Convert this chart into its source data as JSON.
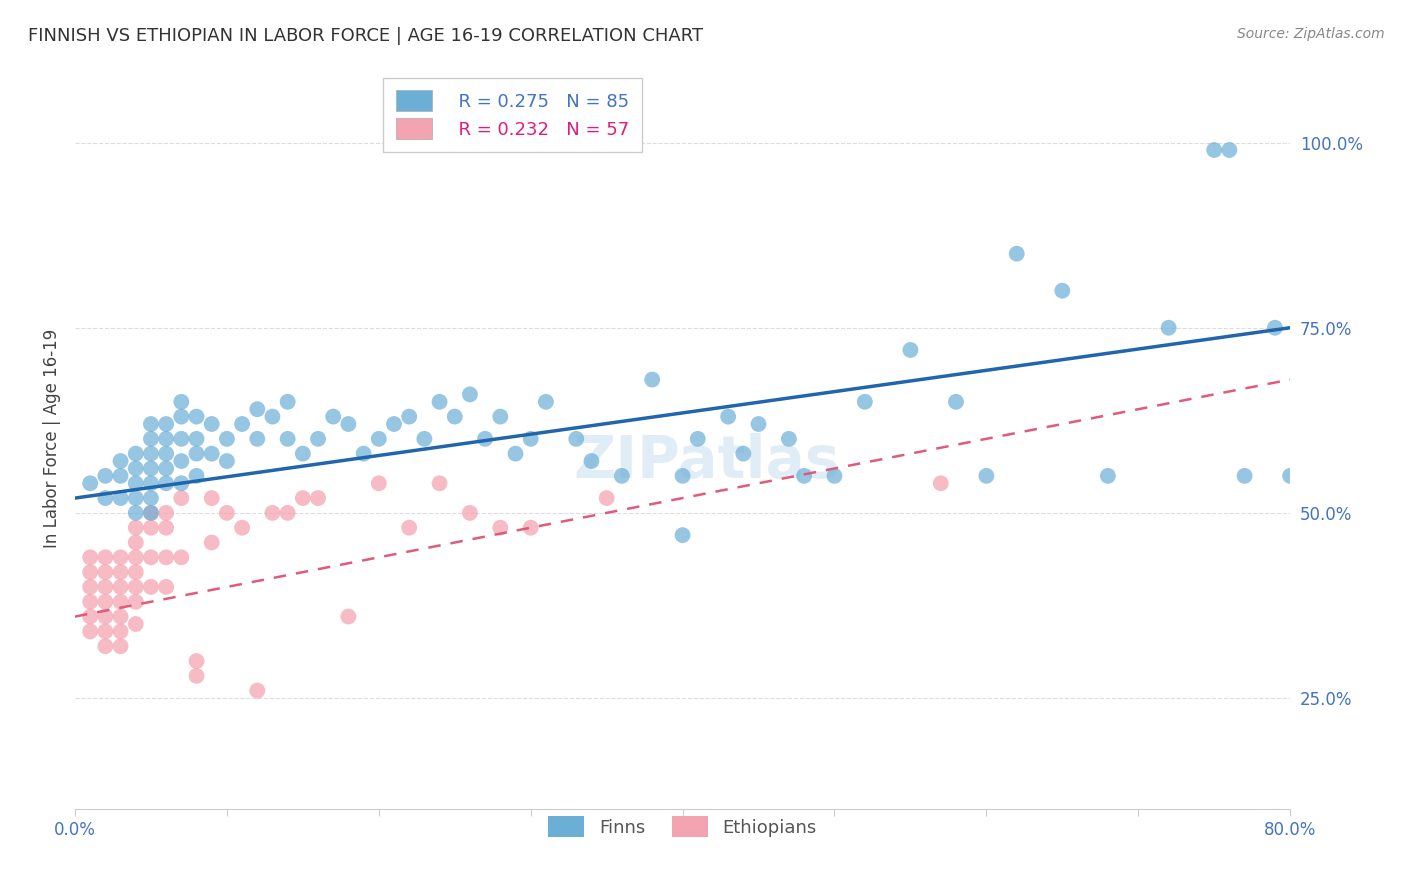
{
  "title": "FINNISH VS ETHIOPIAN IN LABOR FORCE | AGE 16-19 CORRELATION CHART",
  "source": "Source: ZipAtlas.com",
  "ylabel": "In Labor Force | Age 16-19",
  "xlim": [
    0.0,
    0.8
  ],
  "ylim": [
    0.1,
    1.1
  ],
  "ytick_positions": [
    0.25,
    0.5,
    0.75,
    1.0
  ],
  "ytick_labels": [
    "25.0%",
    "50.0%",
    "75.0%",
    "100.0%"
  ],
  "finns_R": 0.275,
  "finns_N": 85,
  "ethiopians_R": 0.232,
  "ethiopians_N": 57,
  "finns_color": "#6baed6",
  "ethiopians_color": "#f4a4b0",
  "finns_line_color": "#2166ac",
  "ethiopians_line_color": "#e05a7a",
  "watermark": "ZIPatlas",
  "background_color": "#ffffff",
  "grid_color": "#dddddd",
  "finn_line_x0": 0.0,
  "finn_line_y0": 0.52,
  "finn_line_x1": 0.8,
  "finn_line_y1": 0.75,
  "eth_line_x0": 0.0,
  "eth_line_y0": 0.36,
  "eth_line_x1": 0.8,
  "eth_line_y1": 0.68,
  "finns_x": [
    0.01,
    0.02,
    0.02,
    0.03,
    0.03,
    0.03,
    0.04,
    0.04,
    0.04,
    0.04,
    0.04,
    0.05,
    0.05,
    0.05,
    0.05,
    0.05,
    0.05,
    0.05,
    0.06,
    0.06,
    0.06,
    0.06,
    0.06,
    0.07,
    0.07,
    0.07,
    0.07,
    0.07,
    0.08,
    0.08,
    0.08,
    0.08,
    0.09,
    0.09,
    0.1,
    0.1,
    0.11,
    0.12,
    0.12,
    0.13,
    0.14,
    0.14,
    0.15,
    0.16,
    0.17,
    0.18,
    0.19,
    0.2,
    0.21,
    0.22,
    0.23,
    0.24,
    0.25,
    0.26,
    0.27,
    0.28,
    0.29,
    0.3,
    0.31,
    0.33,
    0.34,
    0.36,
    0.38,
    0.4,
    0.4,
    0.41,
    0.43,
    0.44,
    0.45,
    0.47,
    0.48,
    0.5,
    0.52,
    0.55,
    0.58,
    0.6,
    0.62,
    0.65,
    0.68,
    0.72,
    0.75,
    0.76,
    0.77,
    0.79,
    0.8
  ],
  "finns_y": [
    0.54,
    0.55,
    0.52,
    0.57,
    0.55,
    0.52,
    0.58,
    0.56,
    0.54,
    0.52,
    0.5,
    0.62,
    0.6,
    0.58,
    0.56,
    0.54,
    0.52,
    0.5,
    0.62,
    0.6,
    0.58,
    0.56,
    0.54,
    0.65,
    0.63,
    0.6,
    0.57,
    0.54,
    0.63,
    0.6,
    0.58,
    0.55,
    0.62,
    0.58,
    0.6,
    0.57,
    0.62,
    0.64,
    0.6,
    0.63,
    0.65,
    0.6,
    0.58,
    0.6,
    0.63,
    0.62,
    0.58,
    0.6,
    0.62,
    0.63,
    0.6,
    0.65,
    0.63,
    0.66,
    0.6,
    0.63,
    0.58,
    0.6,
    0.65,
    0.6,
    0.57,
    0.55,
    0.68,
    0.55,
    0.47,
    0.6,
    0.63,
    0.58,
    0.62,
    0.6,
    0.55,
    0.55,
    0.65,
    0.72,
    0.65,
    0.55,
    0.85,
    0.8,
    0.55,
    0.75,
    0.99,
    0.99,
    0.55,
    0.75,
    0.55
  ],
  "ethiopians_x": [
    0.01,
    0.01,
    0.01,
    0.01,
    0.01,
    0.01,
    0.02,
    0.02,
    0.02,
    0.02,
    0.02,
    0.02,
    0.02,
    0.03,
    0.03,
    0.03,
    0.03,
    0.03,
    0.03,
    0.03,
    0.04,
    0.04,
    0.04,
    0.04,
    0.04,
    0.04,
    0.04,
    0.05,
    0.05,
    0.05,
    0.05,
    0.06,
    0.06,
    0.06,
    0.06,
    0.07,
    0.07,
    0.08,
    0.08,
    0.09,
    0.09,
    0.1,
    0.11,
    0.12,
    0.13,
    0.14,
    0.15,
    0.16,
    0.18,
    0.2,
    0.22,
    0.24,
    0.26,
    0.28,
    0.3,
    0.35,
    0.57
  ],
  "ethiopians_y": [
    0.44,
    0.42,
    0.4,
    0.38,
    0.36,
    0.34,
    0.44,
    0.42,
    0.4,
    0.38,
    0.36,
    0.34,
    0.32,
    0.44,
    0.42,
    0.4,
    0.38,
    0.36,
    0.34,
    0.32,
    0.48,
    0.46,
    0.44,
    0.42,
    0.4,
    0.38,
    0.35,
    0.5,
    0.48,
    0.44,
    0.4,
    0.5,
    0.48,
    0.44,
    0.4,
    0.52,
    0.44,
    0.3,
    0.28,
    0.52,
    0.46,
    0.5,
    0.48,
    0.26,
    0.5,
    0.5,
    0.52,
    0.52,
    0.36,
    0.54,
    0.48,
    0.54,
    0.5,
    0.48,
    0.48,
    0.52,
    0.54
  ]
}
